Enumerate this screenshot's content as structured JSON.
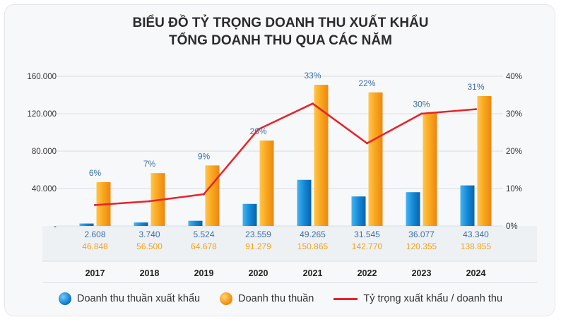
{
  "title_line1": "BIỂU ĐỒ TỶ TRỌNG DOANH THU XUẤT KHẨU",
  "title_line2": "TỔNG DOANH THU QUA CÁC NĂM",
  "legend": {
    "export_revenue": "Doanh thu thuần xuất khẩu",
    "net_revenue": "Doanh thu thuần",
    "ratio": "Tỷ trọng xuất khẩu / doanh thu"
  },
  "chart_data": {
    "type": "bar",
    "categories": [
      "2017",
      "2018",
      "2019",
      "2020",
      "2021",
      "2022",
      "2023",
      "2024"
    ],
    "series": [
      {
        "name": "Doanh thu thuần xuất khẩu",
        "values": [
          2608,
          3740,
          5524,
          23559,
          49265,
          31545,
          36077,
          43340
        ],
        "labels": [
          "2.608",
          "3.740",
          "5.524",
          "23.559",
          "49.265",
          "31.545",
          "36.077",
          "43.340"
        ],
        "color": "#0f7fd0"
      },
      {
        "name": "Doanh thu thuần",
        "values": [
          46848,
          56500,
          64678,
          91279,
          150865,
          142770,
          120355,
          138855
        ],
        "labels": [
          "46.848",
          "56.500",
          "64.678",
          "91.279",
          "150.865",
          "142.770",
          "120.355",
          "138.855"
        ],
        "color": "#f5a21b"
      },
      {
        "name": "Tỷ trọng xuất khẩu / doanh thu",
        "type": "line",
        "axis": "right",
        "values": [
          5.6,
          6.6,
          8.5,
          25.8,
          32.7,
          22.1,
          30.0,
          31.2
        ],
        "labels": [
          "6%",
          "7%",
          "9%",
          "26%",
          "33%",
          "22%",
          "30%",
          "31%"
        ],
        "color": "#e8232a"
      }
    ],
    "ylim": [
      0,
      160000
    ],
    "y_ticks": [
      "-",
      "40.000",
      "80.000",
      "120.000",
      "160.000"
    ],
    "y2lim": [
      0,
      40
    ],
    "y2_ticks": [
      "0%",
      "10%",
      "20%",
      "30%",
      "40%"
    ],
    "grid": true,
    "legend_position": "bottom",
    "colors": {
      "export_label": "#3a6fa8",
      "net_label": "#f0a31e",
      "grid": "#d9dde2",
      "value_row_bg": "#eef1f4"
    }
  }
}
